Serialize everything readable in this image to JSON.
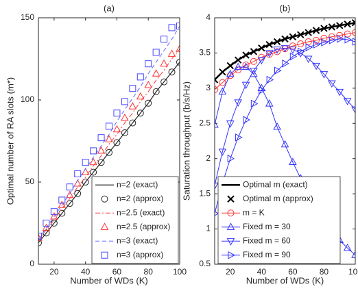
{
  "chart_data": [
    {
      "type": "line",
      "title": "(a)",
      "xlabel": "Number of WDs (K)",
      "ylabel": "Optimal number of RA slots (m*)",
      "x": [
        10,
        15,
        20,
        25,
        30,
        35,
        40,
        45,
        50,
        55,
        60,
        65,
        70,
        75,
        80,
        85,
        90,
        95,
        100
      ],
      "xlim": [
        10,
        100
      ],
      "xticks": [
        20,
        40,
        60,
        80,
        100
      ],
      "ylim": [
        0,
        150
      ],
      "yticks": [
        0,
        50,
        100,
        150
      ],
      "grid": false,
      "legend": "lower right",
      "series": [
        {
          "name": "n=2 (exact)",
          "color": "#222222",
          "linestyle": "solid",
          "marker": "none",
          "linewidth": 1.2,
          "values": [
            13,
            19,
            25,
            31,
            37,
            43,
            50,
            56,
            62,
            68,
            74,
            80,
            86,
            92,
            98,
            105,
            111,
            117,
            123
          ]
        },
        {
          "name": "n=2 (approx)",
          "color": "#222222",
          "linestyle": "none",
          "marker": "o",
          "linewidth": 1,
          "values": [
            13,
            19,
            25,
            31,
            37,
            43,
            50,
            56,
            62,
            68,
            74,
            80,
            86,
            92,
            98,
            105,
            111,
            117,
            123
          ]
        },
        {
          "name": "n=2.5 (exact)",
          "color": "#ff3333",
          "linestyle": "dashdot",
          "marker": "none",
          "linewidth": 1,
          "values": [
            14,
            21,
            27,
            34,
            40,
            47,
            53,
            60,
            66,
            73,
            79,
            86,
            92,
            99,
            105,
            112,
            118,
            125,
            131
          ]
        },
        {
          "name": "n=2.5 (approx)",
          "color": "#ff3333",
          "linestyle": "none",
          "marker": "^",
          "linewidth": 1,
          "values": [
            16,
            22,
            29,
            36,
            42,
            49,
            56,
            62,
            69,
            76,
            82,
            89,
            96,
            102,
            109,
            116,
            122,
            128,
            131
          ]
        },
        {
          "name": "n=3 (exact)",
          "color": "#6666ff",
          "linestyle": "dashed",
          "marker": "none",
          "linewidth": 1,
          "values": [
            15,
            22,
            29,
            36,
            43,
            51,
            58,
            65,
            72,
            79,
            87,
            94,
            101,
            108,
            116,
            123,
            130,
            137,
            145
          ]
        },
        {
          "name": "n=3 (approx)",
          "color": "#4444ff",
          "linestyle": "none",
          "marker": "s",
          "linewidth": 1,
          "values": [
            17,
            25,
            32,
            39,
            47,
            55,
            62,
            69,
            77,
            84,
            92,
            99,
            107,
            114,
            122,
            129,
            137,
            144,
            145
          ]
        }
      ]
    },
    {
      "type": "line",
      "title": "(b)",
      "xlabel": "Number of WDs (K)",
      "ylabel": "Saturation throughput (b/s/Hz)",
      "x": [
        10,
        15,
        20,
        25,
        30,
        35,
        40,
        45,
        50,
        55,
        60,
        65,
        70,
        75,
        80,
        85,
        90,
        95,
        100
      ],
      "xlim": [
        10,
        100
      ],
      "xticks": [
        20,
        40,
        60,
        80,
        100
      ],
      "ylim": [
        0.5,
        4
      ],
      "yticks": [
        0.5,
        1,
        1.5,
        2,
        2.5,
        3,
        3.5,
        4
      ],
      "grid": false,
      "legend": "lower left",
      "series": [
        {
          "name": "Optimal m (exact)",
          "color": "#000000",
          "linestyle": "solid",
          "marker": "none",
          "linewidth": 2.5,
          "values": [
            3.12,
            3.23,
            3.32,
            3.4,
            3.47,
            3.52,
            3.57,
            3.62,
            3.66,
            3.7,
            3.73,
            3.76,
            3.79,
            3.82,
            3.85,
            3.87,
            3.89,
            3.91,
            3.93
          ]
        },
        {
          "name": "Optimal m (approx)",
          "color": "#000000",
          "linestyle": "none",
          "marker": "x",
          "linewidth": 2,
          "values": [
            3.12,
            3.23,
            3.32,
            3.4,
            3.47,
            3.52,
            3.57,
            3.62,
            3.66,
            3.7,
            3.73,
            3.76,
            3.79,
            3.82,
            3.85,
            3.87,
            3.89,
            3.91,
            3.93
          ]
        },
        {
          "name": "m = K",
          "color": "#ff3333",
          "linestyle": "solid",
          "marker": "o",
          "linewidth": 1,
          "values": [
            2.98,
            3.08,
            3.18,
            3.26,
            3.33,
            3.38,
            3.44,
            3.48,
            3.52,
            3.56,
            3.6,
            3.63,
            3.66,
            3.68,
            3.71,
            3.73,
            3.75,
            3.77,
            3.79
          ]
        },
        {
          "name": "Fixed m = 30",
          "color": "#3333ff",
          "linestyle": "solid",
          "marker": "^",
          "linewidth": 1,
          "values": [
            2.48,
            2.95,
            3.2,
            3.3,
            3.3,
            3.2,
            3.0,
            2.78,
            2.45,
            2.2,
            1.95,
            1.72,
            1.5,
            1.3,
            1.12,
            0.97,
            0.84,
            0.73,
            0.63
          ]
        },
        {
          "name": "Fixed m = 60",
          "color": "#3333ff",
          "linestyle": "solid",
          "marker": "v",
          "linewidth": 1,
          "values": [
            1.62,
            2.1,
            2.5,
            2.8,
            3.05,
            3.25,
            3.4,
            3.5,
            3.55,
            3.57,
            3.55,
            3.5,
            3.42,
            3.32,
            3.2,
            3.07,
            2.95,
            2.82,
            2.7
          ]
        },
        {
          "name": "Fixed m = 90",
          "color": "#3333ff",
          "linestyle": "solid",
          "marker": ">",
          "linewidth": 1,
          "values": [
            1.22,
            1.65,
            2.0,
            2.3,
            2.55,
            2.78,
            2.97,
            3.12,
            3.25,
            3.35,
            3.45,
            3.52,
            3.58,
            3.62,
            3.65,
            3.68,
            3.7,
            3.69,
            3.66
          ]
        }
      ]
    }
  ]
}
